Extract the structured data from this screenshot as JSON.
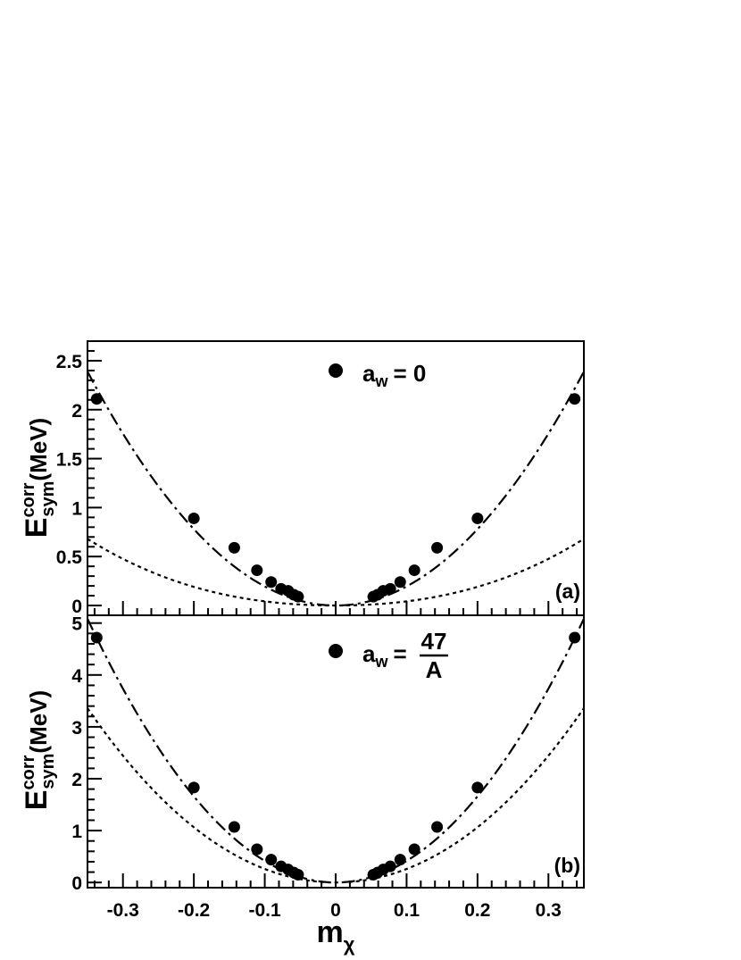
{
  "chart_data": [
    {
      "type": "scatter",
      "panel_label": "(a)",
      "legend": {
        "symbol": "a",
        "sub": "w",
        "rel": "= 0"
      },
      "ylabel": {
        "main": "E",
        "sup": "corr",
        "sub": "sym",
        "unit": "(MeV)"
      },
      "xlabel": "",
      "xlim": [
        -0.35,
        0.35
      ],
      "ylim": [
        -0.1,
        2.7
      ],
      "yticks": [
        0,
        0.5,
        1,
        1.5,
        2,
        2.5
      ],
      "ytick_labels": [
        "0",
        "0.5",
        "1",
        "1.5",
        "2",
        "2.5"
      ],
      "show_xtick_labels": false,
      "series": [
        {
          "kind": "points",
          "x": [
            -0.337,
            -0.2,
            -0.143,
            -0.111,
            -0.091,
            -0.077,
            -0.067,
            -0.059,
            -0.053,
            0.053,
            0.059,
            0.067,
            0.077,
            0.091,
            0.111,
            0.143,
            0.2,
            0.337
          ],
          "y": [
            2.11,
            0.89,
            0.59,
            0.36,
            0.24,
            0.17,
            0.15,
            0.11,
            0.09,
            0.09,
            0.11,
            0.15,
            0.17,
            0.24,
            0.36,
            0.59,
            0.89,
            2.11
          ]
        },
        {
          "kind": "curve",
          "style": "dotted",
          "coef_abs": 5.3,
          "coef_sq": 3.7
        },
        {
          "kind": "curve",
          "style": "dashdot",
          "coef_abs": 0,
          "coef_sq": 19.5
        }
      ]
    },
    {
      "type": "scatter",
      "panel_label": "(b)",
      "legend": {
        "symbol": "a",
        "sub": "w",
        "rel": "=",
        "num": "47",
        "den": "A"
      },
      "ylabel": {
        "main": "E",
        "sup": "corr",
        "sub": "sym",
        "unit": "(MeV)"
      },
      "xlabel": {
        "main": "m",
        "sub": "χ"
      },
      "xlim": [
        -0.35,
        0.35
      ],
      "ylim": [
        -0.1,
        5.15
      ],
      "xticks": [
        -0.3,
        -0.2,
        -0.1,
        0,
        0.1,
        0.2,
        0.3
      ],
      "xtick_labels": [
        "-0.3",
        "-0.2",
        "-0.1",
        "0",
        "0.1",
        "0.2",
        "0.3"
      ],
      "yticks": [
        0,
        1,
        2,
        3,
        4,
        5
      ],
      "ytick_labels": [
        "0",
        "1",
        "2",
        "3",
        "4",
        "5"
      ],
      "show_xtick_labels": true,
      "series": [
        {
          "kind": "points",
          "x": [
            -0.337,
            -0.2,
            -0.143,
            -0.111,
            -0.091,
            -0.077,
            -0.067,
            -0.059,
            -0.053,
            0.053,
            0.059,
            0.067,
            0.077,
            0.091,
            0.111,
            0.143,
            0.2,
            0.337
          ],
          "y": [
            4.72,
            1.83,
            1.07,
            0.64,
            0.44,
            0.31,
            0.25,
            0.19,
            0.15,
            0.15,
            0.19,
            0.25,
            0.31,
            0.44,
            0.64,
            1.07,
            1.83,
            4.72
          ]
        },
        {
          "kind": "curve",
          "style": "dotted",
          "coef_abs": 5.5,
          "coef_sq": 25.5
        },
        {
          "kind": "curve",
          "style": "dashdot",
          "coef_abs": 0,
          "coef_sq": 41.5
        }
      ]
    }
  ]
}
